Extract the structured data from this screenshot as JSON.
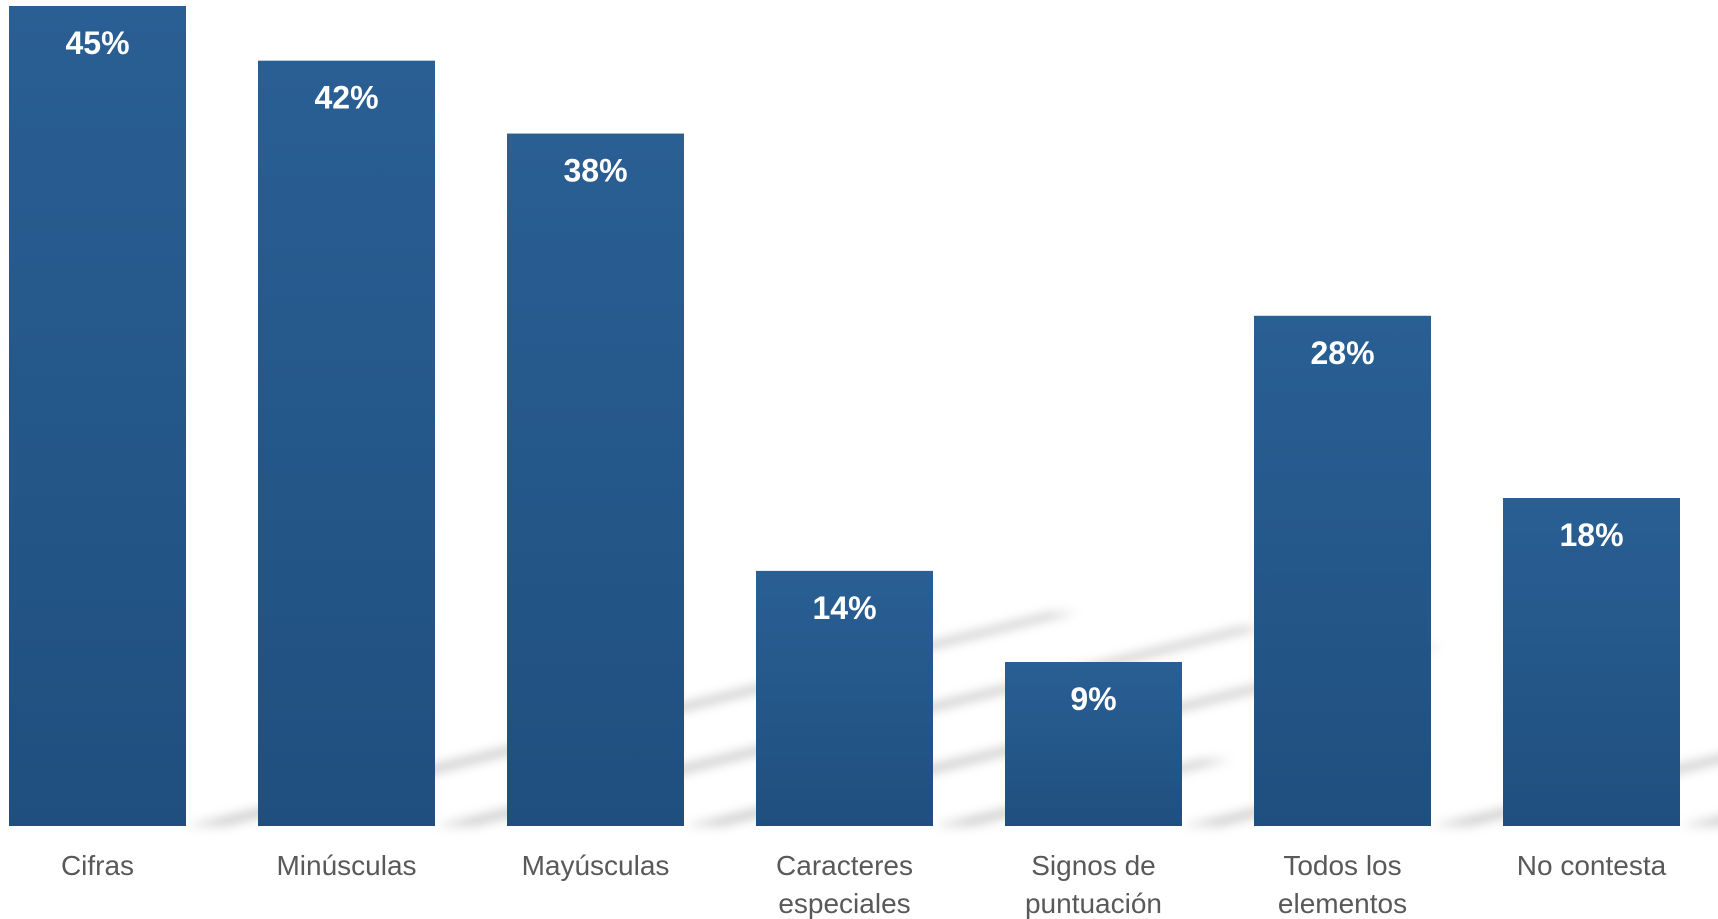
{
  "chart_data": {
    "type": "bar",
    "title": "",
    "xlabel": "",
    "ylabel": "",
    "ylim": [
      0,
      45
    ],
    "grid": false,
    "legend": "none",
    "categories": [
      [
        "Cifras"
      ],
      [
        "Minúsculas"
      ],
      [
        "Mayúsculas"
      ],
      [
        "Caracteres",
        "especiales"
      ],
      [
        "Signos de",
        "puntuación"
      ],
      [
        "Todos los",
        "elementos"
      ],
      [
        "No contesta"
      ]
    ],
    "values": [
      45,
      42,
      38,
      14,
      9,
      28,
      18
    ],
    "value_labels": [
      "45%",
      "42%",
      "38%",
      "14%",
      "9%",
      "28%",
      "18%"
    ],
    "colors": {
      "bar_top": "#2a5f94",
      "bar_bottom": "#1f4f7f",
      "label_text": "#595959",
      "value_text": "#ffffff",
      "shadow": "#c8c8c8"
    }
  }
}
